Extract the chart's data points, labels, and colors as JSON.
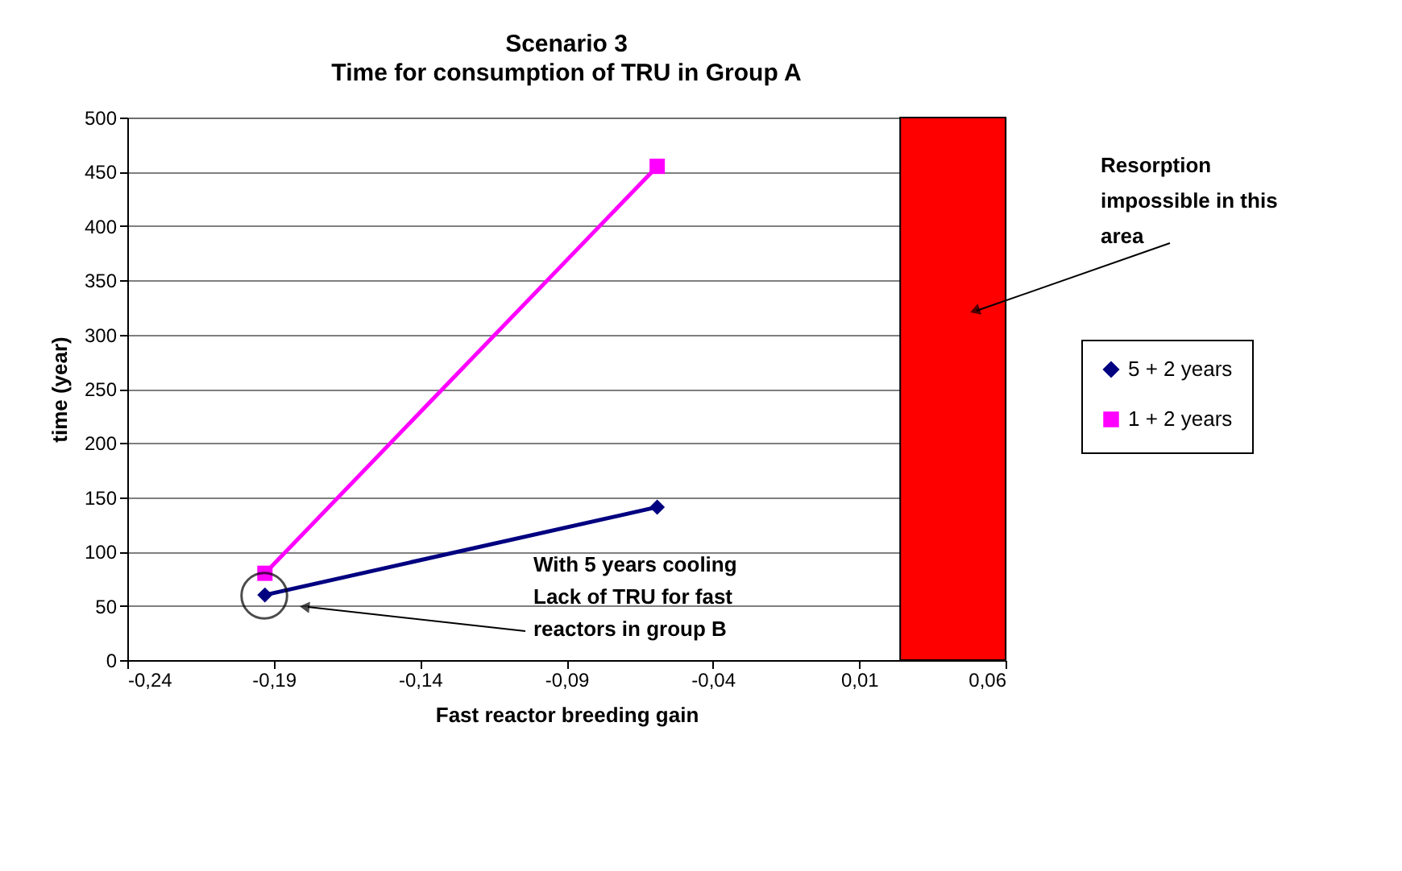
{
  "chart_data": {
    "type": "line",
    "title": "Scenario 3",
    "subtitle": "Time for consumption of TRU in Group A",
    "xlabel": "Fast reactor breeding gain",
    "ylabel": "time (year)",
    "x": [
      -0.193,
      -0.059
    ],
    "series": [
      {
        "name": "5 + 2 years",
        "color": "#000080",
        "marker": "diamond",
        "values": [
          60,
          141
        ]
      },
      {
        "name": "1 + 2 years",
        "color": "#ff00ff",
        "marker": "square",
        "values": [
          80,
          455
        ]
      }
    ],
    "bands": [
      {
        "axis": "x",
        "from": 0.024,
        "to": 0.06,
        "label": "Resorption impossible in this area",
        "color": "#ff0000"
      }
    ],
    "annotations": [
      "With 5 years cooling Lack of TRU for fast reactors in group B"
    ],
    "xlim": [
      -0.24,
      0.06
    ],
    "xticks": [
      {
        "value": -0.24,
        "label": "-0,24"
      },
      {
        "value": -0.19,
        "label": "-0,19"
      },
      {
        "value": -0.14,
        "label": "-0,14"
      },
      {
        "value": -0.09,
        "label": "-0,09"
      },
      {
        "value": -0.04,
        "label": "-0,04"
      },
      {
        "value": 0.01,
        "label": "0,01"
      },
      {
        "value": 0.06,
        "label": "0,06"
      }
    ],
    "ylim": [
      0,
      500
    ],
    "yticks": [
      0,
      50,
      100,
      150,
      200,
      250,
      300,
      350,
      400,
      450,
      500
    ],
    "grid": "y",
    "legend": "right"
  }
}
